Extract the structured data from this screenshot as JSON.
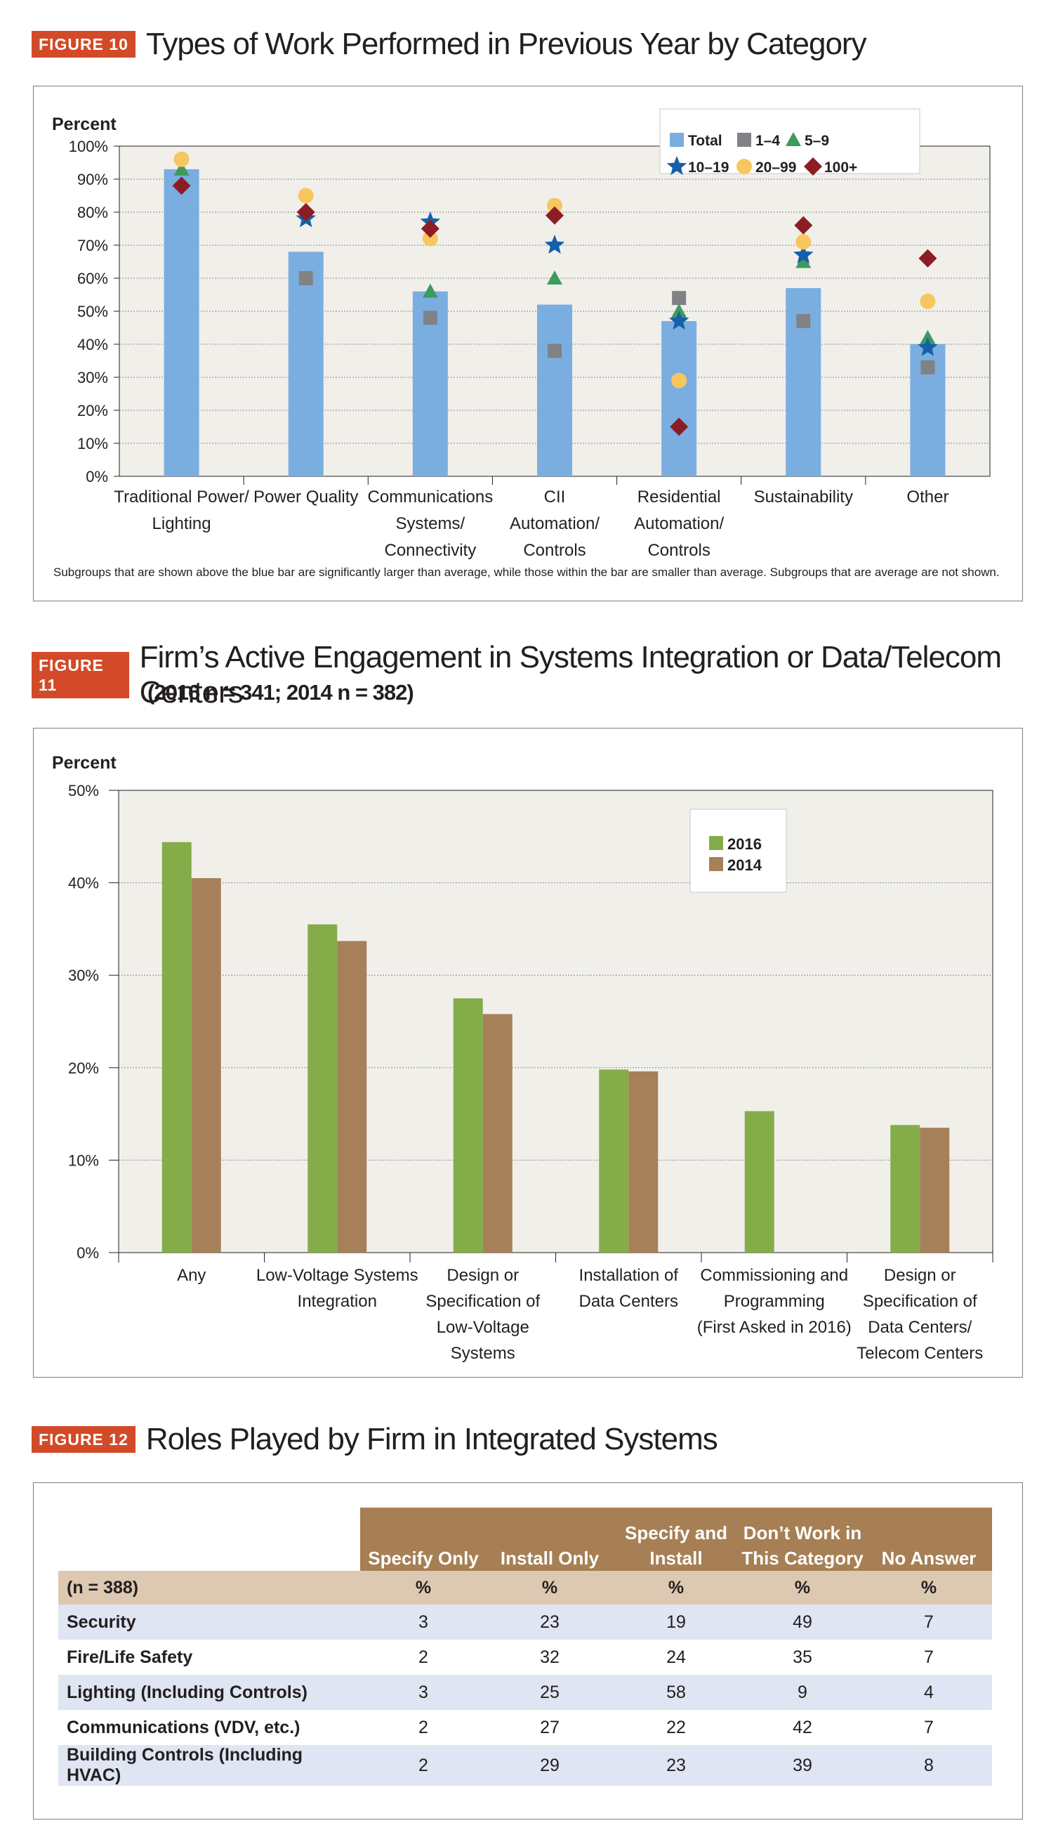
{
  "figure10": {
    "tag": "FIGURE 10",
    "title": "Types of Work Performed in Previous Year by Category",
    "note": "Subgroups that are shown above the blue bar are significantly larger than average, while those within the bar are smaller than average. Subgroups that are average are not shown."
  },
  "figure11": {
    "tag": "FIGURE 11",
    "title": "Firm’s Active Engagement in Systems Integration or Data/Telecom Centers",
    "subtitle": "(2016 n = 341; 2014 n = 382)"
  },
  "figure12": {
    "tag": "FIGURE 12",
    "title": "Roles Played by Firm in Integrated Systems"
  },
  "chart_data": [
    {
      "type": "bar",
      "ylabel": "Percent",
      "ylim": [
        0,
        100
      ],
      "yticks": [
        "0%",
        "10%",
        "20%",
        "30%",
        "40%",
        "50%",
        "60%",
        "70%",
        "80%",
        "90%",
        "100%"
      ],
      "categories": [
        "Traditional Power/\nLighting",
        "Power Quality",
        "Communications\nSystems/\nConnectivity",
        "CII\nAutomation/\nControls",
        "Residential\nAutomation/\nControls",
        "Sustainability",
        "Other"
      ],
      "series": [
        {
          "name": "Total",
          "marker": "bar",
          "color": "#7aaee0",
          "values": [
            93,
            68,
            56,
            52,
            47,
            57,
            40
          ]
        },
        {
          "name": "1–4",
          "marker": "square",
          "color": "#808285",
          "values": [
            null,
            60,
            48,
            38,
            54,
            47,
            33
          ]
        },
        {
          "name": "5–9",
          "marker": "triangle",
          "color": "#3f9a5e",
          "values": [
            93,
            null,
            56,
            60,
            50,
            65,
            42
          ]
        },
        {
          "name": "10–19",
          "marker": "star",
          "color": "#1560a8",
          "values": [
            null,
            78,
            77,
            70,
            47,
            67,
            39
          ]
        },
        {
          "name": "20–99",
          "marker": "circle",
          "color": "#f8c65f",
          "values": [
            96,
            85,
            72,
            82,
            29,
            71,
            53
          ]
        },
        {
          "name": "100+",
          "marker": "diamond",
          "color": "#8c1d24",
          "values": [
            88,
            80,
            75,
            79,
            15,
            76,
            66
          ]
        }
      ],
      "legend": "top-right",
      "grid": true
    },
    {
      "type": "bar",
      "ylabel": "Percent",
      "ylim": [
        0,
        50
      ],
      "yticks": [
        "0%",
        "10%",
        "20%",
        "30%",
        "40%",
        "50%"
      ],
      "categories": [
        "Any",
        "Low-Voltage Systems\nIntegration",
        "Design or\nSpecification of\nLow-Voltage\nSystems",
        "Installation of\nData Centers",
        "Commissioning and\nProgramming\n(First Asked in 2016)",
        "Design or\nSpecification of\nData Centers/\nTelecom Centers"
      ],
      "series": [
        {
          "name": "2016",
          "color": "#84ad4a",
          "values": [
            44.4,
            35.5,
            27.5,
            19.8,
            15.3,
            13.8
          ]
        },
        {
          "name": "2014",
          "color": "#a68058",
          "values": [
            40.5,
            33.7,
            25.8,
            19.6,
            null,
            13.5
          ]
        }
      ],
      "legend": "top-right",
      "grid": true
    },
    {
      "type": "table",
      "columns": [
        "",
        "Specify Only",
        "Install Only",
        "Specify and\nInstall",
        "Don’t Work in\nThis Category",
        "No Answer"
      ],
      "unit_row": [
        "(n = 388)",
        "%",
        "%",
        "%",
        "%",
        "%"
      ],
      "rows": [
        [
          "Security",
          "3",
          "23",
          "19",
          "49",
          "7"
        ],
        [
          "Fire/Life Safety",
          "2",
          "32",
          "24",
          "35",
          "7"
        ],
        [
          "Lighting (Including Controls)",
          "3",
          "25",
          "58",
          "9",
          "4"
        ],
        [
          "Communications (VDV, etc.)",
          "2",
          "27",
          "22",
          "42",
          "7"
        ],
        [
          "Building Controls (Including HVAC)",
          "2",
          "29",
          "23",
          "39",
          "8"
        ]
      ]
    }
  ]
}
